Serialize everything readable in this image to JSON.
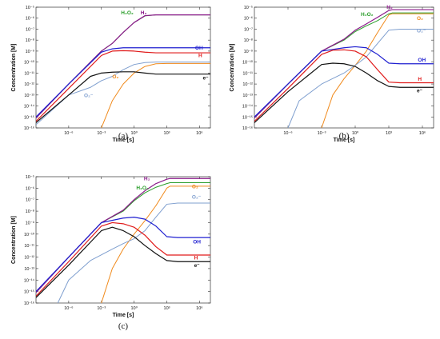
{
  "colors": {
    "H2": "#8b1a8b",
    "H2O2": "#2a9d2a",
    "OH": "#1f1fd0",
    "H": "#e01a1a",
    "e": "#111111",
    "O2": "#f08a1c",
    "O2m": "#7f9fcf"
  },
  "chart_data": [
    {
      "type": "line",
      "panel": "(a)",
      "caption": "(a)",
      "xlabel": "Time [s]",
      "ylabel": "Concentration [M]",
      "xscale": "log",
      "yscale": "log",
      "xlim": [
        1e-09,
        10000000.0
      ],
      "ylim": [
        1e-16,
        1e-05
      ],
      "xticks": [
        "10⁻⁶",
        "10⁻³",
        "10⁰",
        "10³",
        "10⁶"
      ],
      "yticks": [
        "10⁻⁵",
        "10⁻⁶",
        "10⁻⁷",
        "10⁻⁸",
        "10⁻⁹",
        "10⁻¹⁰",
        "10⁻¹¹",
        "10⁻¹²",
        "10⁻¹³",
        "10⁻¹⁴",
        "10⁻¹⁵",
        "10⁻¹⁶"
      ],
      "series": [
        {
          "key": "O2",
          "name": "O₂",
          "color_key": "O2",
          "points": [
            [
              0.001,
              1e-16
            ],
            [
              0.01,
              3e-14
            ],
            [
              0.1,
              1e-12
            ],
            [
              1,
              1e-11
            ],
            [
              10,
              4e-11
            ],
            [
              100,
              7e-11
            ],
            [
              1000.0,
              7.5e-11
            ],
            [
              10000000.0,
              7.5e-11
            ]
          ]
        },
        {
          "key": "O2m",
          "name": "O₂⁻",
          "color_key": "O2m",
          "points": [
            [
              1e-09,
              2e-16
            ],
            [
              1e-06,
              1e-13
            ],
            [
              0.0001,
              5e-13
            ],
            [
              0.001,
              2e-12
            ],
            [
              0.01,
              5e-12
            ],
            [
              0.1,
              2e-11
            ],
            [
              1,
              6e-11
            ],
            [
              10,
              9e-11
            ],
            [
              100,
              1e-10
            ],
            [
              10000000.0,
              1e-10
            ]
          ]
        },
        {
          "key": "H2O2",
          "name": "H₂O₂",
          "color_key": "H2O2",
          "points": [
            [
              1e-09,
              8e-16
            ],
            [
              1e-06,
              1e-12
            ],
            [
              0.001,
              1e-09
            ],
            [
              0.01,
              5e-09
            ],
            [
              0.1,
              5e-08
            ],
            [
              1,
              4e-07
            ],
            [
              10,
              1.6e-06
            ],
            [
              100,
              2e-06
            ],
            [
              1000.0,
              2e-06
            ],
            [
              10000000.0,
              2e-06
            ]
          ]
        },
        {
          "key": "H2",
          "name": "H₂",
          "color_key": "H2",
          "points": [
            [
              1e-09,
              8e-16
            ],
            [
              1e-06,
              1e-12
            ],
            [
              0.001,
              1e-09
            ],
            [
              0.01,
              5e-09
            ],
            [
              0.1,
              5e-08
            ],
            [
              1,
              4e-07
            ],
            [
              10,
              1.7e-06
            ],
            [
              100,
              2e-06
            ],
            [
              1000.0,
              2e-06
            ],
            [
              10000000.0,
              2e-06
            ]
          ]
        },
        {
          "key": "OH",
          "name": "OH",
          "color_key": "OH",
          "points": [
            [
              1e-09,
              1e-15
            ],
            [
              1e-06,
              1e-12
            ],
            [
              0.001,
              8e-10
            ],
            [
              0.01,
              1.6e-09
            ],
            [
              0.1,
              2e-09
            ],
            [
              1,
              2e-09
            ],
            [
              10000000.0,
              2e-09
            ]
          ]
        },
        {
          "key": "H",
          "name": "H",
          "color_key": "H",
          "points": [
            [
              1e-09,
              4e-16
            ],
            [
              1e-06,
              4e-13
            ],
            [
              0.001,
              4e-10
            ],
            [
              0.01,
              1e-09
            ],
            [
              0.1,
              1.1e-09
            ],
            [
              1,
              1e-09
            ],
            [
              10,
              8e-10
            ],
            [
              100,
              7e-10
            ],
            [
              1000.0,
              7e-10
            ],
            [
              10000000.0,
              7e-10
            ]
          ]
        },
        {
          "key": "e",
          "name": "e⁻",
          "color_key": "e",
          "points": [
            [
              1e-09,
              3e-16
            ],
            [
              1e-06,
              1e-13
            ],
            [
              0.0001,
              5e-12
            ],
            [
              0.001,
              1e-11
            ],
            [
              0.01,
              1.2e-11
            ],
            [
              0.1,
              1.3e-11
            ],
            [
              1,
              1.3e-11
            ],
            [
              10,
              1e-11
            ],
            [
              100,
              8e-12
            ],
            [
              1000.0,
              8e-12
            ],
            [
              10000000.0,
              8e-12
            ]
          ]
        }
      ]
    },
    {
      "type": "line",
      "panel": "(b)",
      "caption": "(b)",
      "xlabel": "Time [s]",
      "ylabel": "Concentration [M]",
      "xscale": "log",
      "yscale": "log",
      "xlim": [
        1e-09,
        10000000.0
      ],
      "ylim": [
        1e-16,
        1e-05
      ],
      "xticks": [
        "10⁻⁶",
        "10⁻³",
        "10⁰",
        "10³",
        "10⁶"
      ],
      "yticks": [
        "10⁻⁵",
        "10⁻⁶",
        "10⁻⁷",
        "10⁻⁸",
        "10⁻⁹",
        "10⁻¹⁰",
        "10⁻¹¹",
        "10⁻¹²",
        "10⁻¹³",
        "10⁻¹⁴",
        "10⁻¹⁵",
        "10⁻¹⁶"
      ],
      "series": [
        {
          "key": "O2",
          "name": "O₂",
          "color_key": "O2",
          "points": [
            [
              0.001,
              1e-16
            ],
            [
              0.01,
              1e-13
            ],
            [
              0.1,
              3e-12
            ],
            [
              1,
              5e-11
            ],
            [
              10,
              1e-09
            ],
            [
              100,
              5e-08
            ],
            [
              1000.0,
              2e-06
            ],
            [
              2000.0,
              2.5e-06
            ],
            [
              10000000.0,
              2.5e-06
            ]
          ]
        },
        {
          "key": "O2m",
          "name": "O₂⁻",
          "color_key": "O2m",
          "points": [
            [
              1e-06,
              1e-16
            ],
            [
              1e-05,
              3e-14
            ],
            [
              0.001,
              1e-12
            ],
            [
              0.1,
              1e-11
            ],
            [
              1,
              5e-11
            ],
            [
              10,
              3e-10
            ],
            [
              100,
              5e-09
            ],
            [
              1000.0,
              8e-08
            ],
            [
              10000.0,
              1e-07
            ],
            [
              10000000.0,
              1e-07
            ]
          ]
        },
        {
          "key": "H2O2",
          "name": "H₂O₂",
          "color_key": "H2O2",
          "points": [
            [
              1e-09,
              8e-16
            ],
            [
              1e-06,
              1e-12
            ],
            [
              0.001,
              1e-09
            ],
            [
              0.1,
              1e-08
            ],
            [
              1,
              6e-08
            ],
            [
              10,
              2e-07
            ],
            [
              100,
              6e-07
            ],
            [
              1000.0,
              2.5e-06
            ],
            [
              2000.0,
              3e-06
            ],
            [
              10000000.0,
              3e-06
            ]
          ]
        },
        {
          "key": "H2",
          "name": "H₂",
          "color_key": "H2",
          "points": [
            [
              1e-09,
              8e-16
            ],
            [
              1e-06,
              1e-12
            ],
            [
              0.001,
              1e-09
            ],
            [
              0.1,
              1.2e-08
            ],
            [
              1,
              8e-08
            ],
            [
              10,
              3e-07
            ],
            [
              100,
              1.2e-06
            ],
            [
              1000.0,
              5e-06
            ],
            [
              2000.0,
              6e-06
            ],
            [
              10000000.0,
              6e-06
            ]
          ]
        },
        {
          "key": "OH",
          "name": "OH",
          "color_key": "OH",
          "points": [
            [
              1e-09,
              1e-15
            ],
            [
              1e-06,
              1e-12
            ],
            [
              0.001,
              1e-09
            ],
            [
              0.1,
              2e-09
            ],
            [
              1,
              2.5e-09
            ],
            [
              10,
              2e-09
            ],
            [
              100,
              5e-10
            ],
            [
              1000.0,
              8e-11
            ],
            [
              10000.0,
              7e-11
            ],
            [
              10000000.0,
              7e-11
            ]
          ]
        },
        {
          "key": "H",
          "name": "H",
          "color_key": "H",
          "points": [
            [
              1e-09,
              4e-16
            ],
            [
              1e-06,
              4e-13
            ],
            [
              0.001,
              5e-10
            ],
            [
              0.01,
              1.2e-09
            ],
            [
              0.1,
              1.3e-09
            ],
            [
              1,
              1e-09
            ],
            [
              10,
              3e-10
            ],
            [
              100,
              2e-11
            ],
            [
              1000.0,
              1.5e-12
            ],
            [
              10000.0,
              1.3e-12
            ],
            [
              10000000.0,
              1.3e-12
            ]
          ]
        },
        {
          "key": "e",
          "name": "e⁻",
          "color_key": "e",
          "points": [
            [
              1e-09,
              3e-16
            ],
            [
              1e-06,
              2e-13
            ],
            [
              0.001,
              6e-11
            ],
            [
              0.01,
              8e-11
            ],
            [
              0.1,
              7e-11
            ],
            [
              1,
              4e-11
            ],
            [
              10,
              1e-11
            ],
            [
              100,
              2e-12
            ],
            [
              1000.0,
              6e-13
            ],
            [
              10000.0,
              5e-13
            ],
            [
              10000000.0,
              5e-13
            ]
          ]
        }
      ]
    },
    {
      "type": "line",
      "panel": "(c)",
      "caption": "(c)",
      "xlabel": "Time [s]",
      "ylabel": "Concentration [M]",
      "xscale": "log",
      "yscale": "log",
      "xlim": [
        1e-09,
        10000000.0
      ],
      "ylim": [
        1e-16,
        1e-05
      ],
      "xticks": [
        "10⁻⁶",
        "10⁻³",
        "10⁰",
        "10³",
        "10⁶"
      ],
      "yticks": [
        "10⁻⁵",
        "10⁻⁶",
        "10⁻⁷",
        "10⁻⁸",
        "10⁻⁹",
        "10⁻¹⁰",
        "10⁻¹¹",
        "10⁻¹²",
        "10⁻¹³",
        "10⁻¹⁴",
        "10⁻¹⁵",
        "10⁻¹⁶"
      ],
      "series": [
        {
          "key": "O2",
          "name": "O₂",
          "color_key": "O2",
          "points": [
            [
              0.001,
              1e-16
            ],
            [
              0.01,
              1e-13
            ],
            [
              0.1,
              5e-12
            ],
            [
              1,
              1e-10
            ],
            [
              10,
              1.5e-09
            ],
            [
              100,
              3e-08
            ],
            [
              1000.0,
              1e-06
            ],
            [
              2000.0,
              1.5e-06
            ],
            [
              10000000.0,
              1.5e-06
            ]
          ]
        },
        {
          "key": "O2m",
          "name": "O₂⁻",
          "color_key": "O2m",
          "points": [
            [
              1e-07,
              1e-16
            ],
            [
              1e-06,
              1e-14
            ],
            [
              0.0001,
              5e-13
            ],
            [
              0.01,
              5e-12
            ],
            [
              0.1,
              1.5e-11
            ],
            [
              1,
              4e-11
            ],
            [
              10,
              2e-10
            ],
            [
              100,
              3e-09
            ],
            [
              1000.0,
              4e-08
            ],
            [
              10000.0,
              5e-08
            ],
            [
              10000000.0,
              5e-08
            ]
          ]
        },
        {
          "key": "H2O2",
          "name": "H₂O₂",
          "color_key": "H2O2",
          "points": [
            [
              1e-09,
              8e-16
            ],
            [
              1e-06,
              1e-12
            ],
            [
              0.001,
              1e-09
            ],
            [
              0.1,
              1e-08
            ],
            [
              1,
              8e-08
            ],
            [
              10,
              4e-07
            ],
            [
              100,
              1.2e-06
            ],
            [
              1000.0,
              2.5e-06
            ],
            [
              2000.0,
              3e-06
            ],
            [
              10000000.0,
              3e-06
            ]
          ]
        },
        {
          "key": "H2",
          "name": "H₂",
          "color_key": "H2",
          "points": [
            [
              1e-09,
              8e-16
            ],
            [
              1e-06,
              1e-12
            ],
            [
              0.001,
              1e-09
            ],
            [
              0.1,
              1.2e-08
            ],
            [
              1,
              1e-07
            ],
            [
              10,
              6e-07
            ],
            [
              100,
              2.5e-06
            ],
            [
              1000.0,
              6e-06
            ],
            [
              2000.0,
              7e-06
            ],
            [
              10000000.0,
              7e-06
            ]
          ]
        },
        {
          "key": "OH",
          "name": "OH",
          "color_key": "OH",
          "points": [
            [
              1e-09,
              1e-15
            ],
            [
              1e-06,
              1e-12
            ],
            [
              0.001,
              1e-09
            ],
            [
              0.1,
              2.5e-09
            ],
            [
              1,
              3e-09
            ],
            [
              10,
              2e-09
            ],
            [
              100,
              5e-10
            ],
            [
              1000.0,
              6e-11
            ],
            [
              10000.0,
              5e-11
            ],
            [
              10000000.0,
              5e-11
            ]
          ]
        },
        {
          "key": "H",
          "name": "H",
          "color_key": "H",
          "points": [
            [
              1e-09,
              4e-16
            ],
            [
              1e-06,
              4e-13
            ],
            [
              0.001,
              5e-10
            ],
            [
              0.01,
              1e-09
            ],
            [
              0.1,
              8e-10
            ],
            [
              1,
              4e-10
            ],
            [
              10,
              8e-11
            ],
            [
              100,
              8e-12
            ],
            [
              1000.0,
              1.5e-12
            ],
            [
              10000.0,
              1.5e-12
            ],
            [
              10000000.0,
              1.5e-12
            ]
          ]
        },
        {
          "key": "e",
          "name": "e⁻",
          "color_key": "e",
          "points": [
            [
              1e-09,
              3e-16
            ],
            [
              1e-06,
              2e-13
            ],
            [
              0.001,
              2e-10
            ],
            [
              0.01,
              4e-10
            ],
            [
              0.1,
              2e-10
            ],
            [
              1,
              6e-11
            ],
            [
              10,
              1e-11
            ],
            [
              100,
              2e-12
            ],
            [
              1000.0,
              5e-13
            ],
            [
              10000.0,
              4e-13
            ],
            [
              10000000.0,
              4e-13
            ]
          ]
        }
      ]
    }
  ],
  "label_text": {
    "H2": "H₂",
    "H2O2": "H₂O₂",
    "OH": "OH",
    "H": "H",
    "e": "e⁻",
    "O2": "O₂",
    "O2m": "O₂⁻"
  }
}
